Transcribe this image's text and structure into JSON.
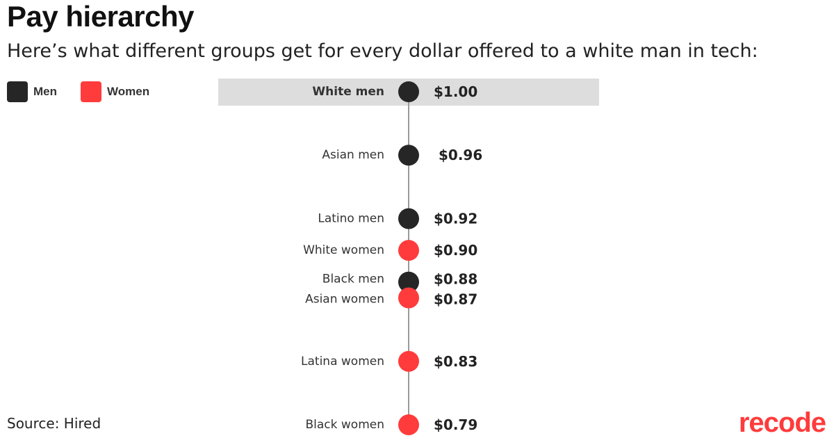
{
  "title": "Pay hierarchy",
  "subtitle": "Here’s what different groups get for every dollar offered to a white man in tech:",
  "legend": [
    {
      "label": "Men",
      "color_key": "men"
    },
    {
      "label": "Women",
      "color_key": "women"
    }
  ],
  "colors": {
    "men": "#262626",
    "women": "#ff3b3b",
    "highlight": "#dddddd",
    "axis": "#9a9a9a",
    "brand": "#ff3b3b"
  },
  "source": "Source: Hired",
  "brand": "recode",
  "chart_data": {
    "type": "scatter",
    "orientation": "vertical-dot-plot",
    "highlighted": "White men",
    "points": [
      {
        "group": "White men",
        "value": 1.0,
        "value_label": "$1.00",
        "gender": "men"
      },
      {
        "group": "Asian men",
        "value": 0.96,
        "value_label": "$0.96",
        "gender": "men"
      },
      {
        "group": "Latino men",
        "value": 0.92,
        "value_label": "$0.92",
        "gender": "men"
      },
      {
        "group": "White women",
        "value": 0.9,
        "value_label": "$0.90",
        "gender": "women"
      },
      {
        "group": "Black men",
        "value": 0.88,
        "value_label": "$0.88",
        "gender": "men"
      },
      {
        "group": "Asian women",
        "value": 0.87,
        "value_label": "$0.87",
        "gender": "women"
      },
      {
        "group": "Latina women",
        "value": 0.83,
        "value_label": "$0.83",
        "gender": "women"
      },
      {
        "group": "Black women",
        "value": 0.79,
        "value_label": "$0.79",
        "gender": "women"
      }
    ],
    "value_range": [
      0.79,
      1.0
    ]
  }
}
